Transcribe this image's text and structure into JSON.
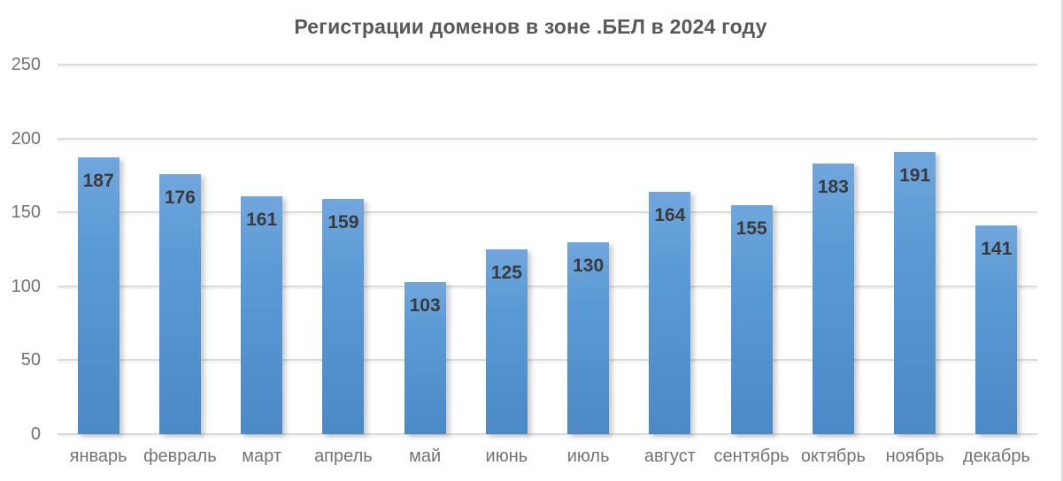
{
  "chart": {
    "title": "Регистрации доменов в зоне .БЕЛ в 2024 году"
  },
  "chart_data": {
    "type": "bar",
    "title": "Регистрации доменов в зоне .БЕЛ в 2024 году",
    "categories": [
      "январь",
      "февраль",
      "март",
      "апрель",
      "май",
      "июнь",
      "июль",
      "август",
      "сентябрь",
      "октябрь",
      "ноябрь",
      "декабрь"
    ],
    "values": [
      187,
      176,
      161,
      159,
      103,
      125,
      130,
      164,
      155,
      183,
      191,
      141
    ],
    "xlabel": "",
    "ylabel": "",
    "ylim": [
      0,
      250
    ],
    "yticks": [
      0,
      50,
      100,
      150,
      200,
      250
    ],
    "grid": true,
    "legend": false,
    "data_labels": "inside-end",
    "colors": {
      "bar_fill": "#5b9bd5",
      "bar_gradient_top": "#71a6dd",
      "bar_gradient_bottom": "#4c89c7",
      "title_text": "#595959",
      "axis_tick_text": "#737373",
      "value_label_text": "#3a3a3a",
      "gridline": "#dbdbdb",
      "background": "#ffffff"
    }
  }
}
